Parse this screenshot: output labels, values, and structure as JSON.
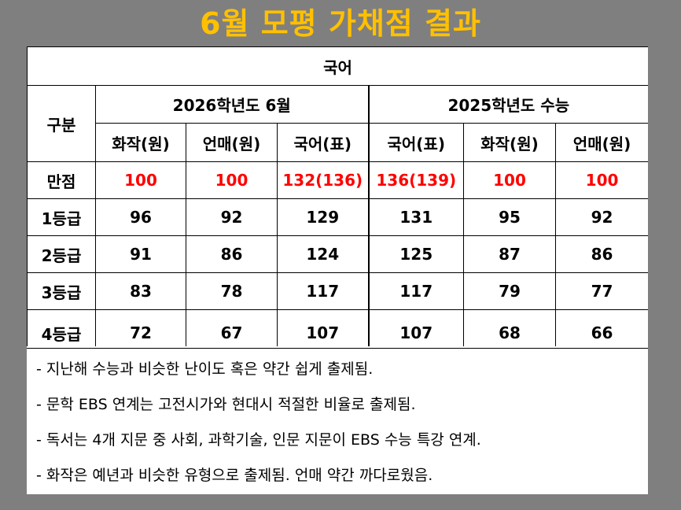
{
  "title": "6월 모평 가채점 결과",
  "table": {
    "subject": "국어",
    "row_header": "구분",
    "exam_2026": "2026학년도 6월",
    "exam_2025": "2025학년도 수능",
    "columns": [
      "화작(원)",
      "언매(원)",
      "국어(표)",
      "국어(표)",
      "화작(원)",
      "언매(원)"
    ],
    "rows": [
      {
        "label": "만점",
        "values": [
          "100",
          "100",
          "132(136)",
          "136(139)",
          "100",
          "100"
        ]
      },
      {
        "label": "1등급",
        "values": [
          "96",
          "92",
          "129",
          "131",
          "95",
          "92"
        ]
      },
      {
        "label": "2등급",
        "values": [
          "91",
          "86",
          "124",
          "125",
          "87",
          "86"
        ]
      },
      {
        "label": "3등급",
        "values": [
          "83",
          "78",
          "117",
          "117",
          "79",
          "77"
        ]
      },
      {
        "label": "4등급",
        "values": [
          "72",
          "67",
          "107",
          "107",
          "68",
          "66"
        ]
      }
    ]
  },
  "notes": [
    "- 지난해 수능과 비슷한 난이도 혹은 약간 쉽게 출제됨.",
    "- 문학 EBS 연계는 고전시가와 현대시 적절한 비율로 출제됨.",
    "- 독서는 4개 지문 중 사회, 과학기술, 인문 지문이 EBS 수능 특강 연계.",
    "- 화작은 예년과 비슷한 유형으로 출제됨. 언매 약간 까다로웠음."
  ],
  "colors": {
    "background": "#7f7f7f",
    "title": "#ffc000",
    "max_score": "#ff0000"
  }
}
